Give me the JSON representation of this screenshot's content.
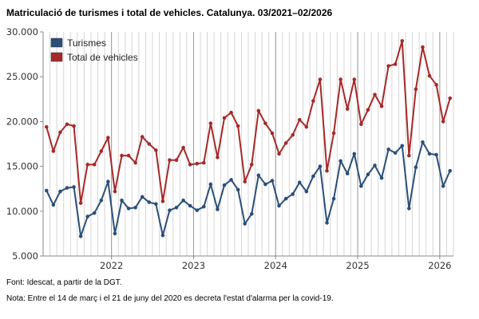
{
  "title": "Matriculació de turismes i total de vehicles. Catalunya. 03/2021–02/2026",
  "source": "Font: Idescat, a partir de la DGT.",
  "note": "Nota: Entre el 14 de març i el 21 de juny del 2020 es decreta l'estat d'alarma per la covid-19.",
  "chart_data": {
    "type": "line",
    "title": "Matriculació de turismes i total de vehicles. Catalunya. 03/2021–02/2026",
    "xlabel": "",
    "ylabel": "",
    "ylim": [
      5000,
      30000
    ],
    "yticks": [
      5000,
      10000,
      15000,
      20000,
      25000,
      30000
    ],
    "ytick_labels": [
      "5.000",
      "10.000",
      "15.000",
      "20.000",
      "25.000",
      "30.000"
    ],
    "xtick_labels": [
      "2022",
      "2023",
      "2024",
      "2025",
      "2026"
    ],
    "xtick_month_index": [
      10,
      22,
      34,
      46,
      58
    ],
    "grid": "vertical monthly",
    "legend_position": "top-left",
    "x": [
      "03/2021",
      "04/2021",
      "05/2021",
      "06/2021",
      "07/2021",
      "08/2021",
      "09/2021",
      "10/2021",
      "11/2021",
      "12/2021",
      "01/2022",
      "02/2022",
      "03/2022",
      "04/2022",
      "05/2022",
      "06/2022",
      "07/2022",
      "08/2022",
      "09/2022",
      "10/2022",
      "11/2022",
      "12/2022",
      "01/2023",
      "02/2023",
      "03/2023",
      "04/2023",
      "05/2023",
      "06/2023",
      "07/2023",
      "08/2023",
      "09/2023",
      "10/2023",
      "11/2023",
      "12/2023",
      "01/2024",
      "02/2024",
      "03/2024",
      "04/2024",
      "05/2024",
      "06/2024",
      "07/2024",
      "08/2024",
      "09/2024",
      "10/2024",
      "11/2024",
      "12/2024",
      "01/2025",
      "02/2025",
      "03/2025",
      "04/2025",
      "05/2025",
      "06/2025",
      "07/2025",
      "08/2025",
      "09/2025",
      "10/2025",
      "11/2025",
      "12/2025",
      "01/2026",
      "02/2026"
    ],
    "series": [
      {
        "name": "Turismes",
        "color": "#2b4f78",
        "values": [
          12300,
          10700,
          12200,
          12600,
          12700,
          7200,
          9400,
          9800,
          11200,
          13300,
          7500,
          11200,
          10300,
          10400,
          11600,
          11000,
          10800,
          7300,
          10100,
          10400,
          11200,
          10600,
          10100,
          10500,
          13000,
          10200,
          12900,
          13500,
          12400,
          8600,
          9700,
          14000,
          13000,
          13400,
          10600,
          11400,
          11900,
          13200,
          12200,
          13900,
          15000,
          8700,
          11400,
          15600,
          14200,
          16400,
          12800,
          14100,
          15100,
          13700,
          16900,
          16500,
          17300,
          10300,
          14900,
          17700,
          16400,
          16300,
          12800,
          14500
        ]
      },
      {
        "name": "Total de vehicles",
        "color": "#a52a2a",
        "values": [
          19400,
          16700,
          18800,
          19700,
          19500,
          10900,
          15200,
          15200,
          16700,
          18200,
          12200,
          16200,
          16200,
          15400,
          18300,
          17500,
          16800,
          11100,
          15700,
          15700,
          17100,
          15200,
          15300,
          15400,
          19800,
          16000,
          20400,
          21000,
          19500,
          13300,
          15200,
          21200,
          19800,
          18700,
          16400,
          17600,
          18500,
          20200,
          19400,
          22300,
          24700,
          14500,
          18700,
          24700,
          21400,
          24700,
          19700,
          21300,
          23000,
          21700,
          26200,
          26400,
          29000,
          16200,
          23600,
          28300,
          25100,
          24100,
          20000,
          22600
        ]
      }
    ]
  }
}
